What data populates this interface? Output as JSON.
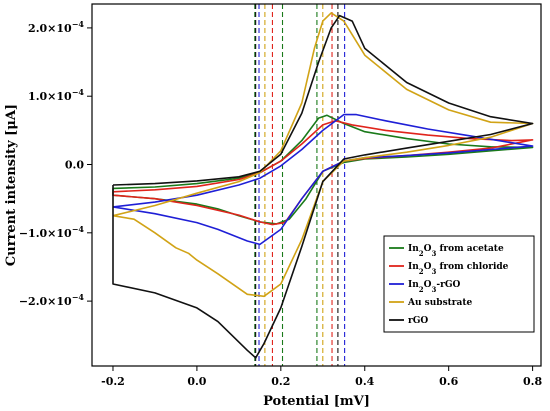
{
  "chart_data": {
    "type": "line",
    "xlabel": "Potential [mV]",
    "ylabel": "Current intensity [μA]",
    "xlim": [
      -0.25,
      0.82
    ],
    "ylim": [
      -2.95,
      2.35
    ],
    "x_ticks": [
      {
        "v": -0.2,
        "label": "-0.2"
      },
      {
        "v": 0.0,
        "label": "0.0"
      },
      {
        "v": 0.2,
        "label": "0.2"
      },
      {
        "v": 0.4,
        "label": "0.4"
      },
      {
        "v": 0.6,
        "label": "0.6"
      },
      {
        "v": 0.8,
        "label": "0.8"
      }
    ],
    "y_ticks": [
      {
        "v": 2.0,
        "main": "2.0×10",
        "exp": "−4"
      },
      {
        "v": 1.0,
        "main": "1.0×10",
        "exp": "−4"
      },
      {
        "v": 0.0,
        "main": "0.0",
        "exp": ""
      },
      {
        "v": -1.0,
        "main": "−1.0×10",
        "exp": "−4"
      },
      {
        "v": -2.0,
        "main": "−2.0×10",
        "exp": "−4"
      }
    ],
    "grid": false,
    "legend_position": "bottom-right",
    "series": [
      {
        "name": "In2O3 from acetate",
        "legend": {
          "pre": "In",
          "sub1": "2",
          "mid": "O",
          "sub2": "3",
          "post": " from acetate"
        },
        "color": "#1a7a1a",
        "points": [
          [
            -0.2,
            -0.35
          ],
          [
            -0.1,
            -0.33
          ],
          [
            0.0,
            -0.28
          ],
          [
            0.1,
            -0.2
          ],
          [
            0.15,
            -0.12
          ],
          [
            0.2,
            0.05
          ],
          [
            0.25,
            0.35
          ],
          [
            0.29,
            0.68
          ],
          [
            0.31,
            0.72
          ],
          [
            0.35,
            0.6
          ],
          [
            0.4,
            0.48
          ],
          [
            0.5,
            0.38
          ],
          [
            0.6,
            0.3
          ],
          [
            0.7,
            0.26
          ],
          [
            0.8,
            0.25
          ],
          [
            0.7,
            0.2
          ],
          [
            0.6,
            0.15
          ],
          [
            0.5,
            0.11
          ],
          [
            0.4,
            0.08
          ],
          [
            0.35,
            0.03
          ],
          [
            0.3,
            -0.1
          ],
          [
            0.26,
            -0.5
          ],
          [
            0.22,
            -0.8
          ],
          [
            0.19,
            -0.87
          ],
          [
            0.15,
            -0.84
          ],
          [
            0.1,
            -0.75
          ],
          [
            0.05,
            -0.65
          ],
          [
            0.0,
            -0.58
          ],
          [
            -0.1,
            -0.5
          ],
          [
            -0.2,
            -0.45
          ]
        ]
      },
      {
        "name": "In2O3 from chloride",
        "legend": {
          "pre": "In",
          "sub1": "2",
          "mid": "O",
          "sub2": "3",
          "post": " from chloride"
        },
        "color": "#e0241c",
        "points": [
          [
            -0.2,
            -0.4
          ],
          [
            -0.1,
            -0.37
          ],
          [
            0.0,
            -0.32
          ],
          [
            0.1,
            -0.22
          ],
          [
            0.15,
            -0.12
          ],
          [
            0.2,
            0.05
          ],
          [
            0.25,
            0.3
          ],
          [
            0.3,
            0.58
          ],
          [
            0.33,
            0.64
          ],
          [
            0.37,
            0.58
          ],
          [
            0.45,
            0.5
          ],
          [
            0.55,
            0.43
          ],
          [
            0.65,
            0.38
          ],
          [
            0.75,
            0.35
          ],
          [
            0.8,
            0.36
          ],
          [
            0.7,
            0.24
          ],
          [
            0.6,
            0.18
          ],
          [
            0.5,
            0.13
          ],
          [
            0.4,
            0.09
          ],
          [
            0.35,
            0.05
          ],
          [
            0.3,
            -0.1
          ],
          [
            0.25,
            -0.5
          ],
          [
            0.21,
            -0.85
          ],
          [
            0.18,
            -0.88
          ],
          [
            0.15,
            -0.84
          ],
          [
            0.1,
            -0.74
          ],
          [
            0.0,
            -0.6
          ],
          [
            -0.1,
            -0.5
          ],
          [
            -0.2,
            -0.45
          ]
        ]
      },
      {
        "name": "In2O3-rGO",
        "legend": {
          "pre": "In",
          "sub1": "2",
          "mid": "O",
          "sub2": "3",
          "post": "-rGO"
        },
        "color": "#1f1fd6",
        "points": [
          [
            -0.2,
            -0.62
          ],
          [
            -0.1,
            -0.55
          ],
          [
            0.0,
            -0.45
          ],
          [
            0.1,
            -0.3
          ],
          [
            0.15,
            -0.2
          ],
          [
            0.2,
            -0.02
          ],
          [
            0.25,
            0.22
          ],
          [
            0.3,
            0.5
          ],
          [
            0.35,
            0.73
          ],
          [
            0.38,
            0.73
          ],
          [
            0.45,
            0.64
          ],
          [
            0.55,
            0.52
          ],
          [
            0.65,
            0.42
          ],
          [
            0.75,
            0.32
          ],
          [
            0.8,
            0.27
          ],
          [
            0.7,
            0.22
          ],
          [
            0.6,
            0.17
          ],
          [
            0.5,
            0.13
          ],
          [
            0.4,
            0.1
          ],
          [
            0.35,
            0.05
          ],
          [
            0.3,
            -0.1
          ],
          [
            0.25,
            -0.5
          ],
          [
            0.2,
            -0.95
          ],
          [
            0.15,
            -1.17
          ],
          [
            0.12,
            -1.12
          ],
          [
            0.05,
            -0.95
          ],
          [
            0.0,
            -0.85
          ],
          [
            -0.1,
            -0.72
          ],
          [
            -0.2,
            -0.62
          ]
        ]
      },
      {
        "name": "Au substrate",
        "legend": {
          "pre": "Au substrate",
          "sub1": "",
          "mid": "",
          "sub2": "",
          "post": ""
        },
        "color": "#d1a316",
        "points": [
          [
            -0.2,
            -0.75
          ],
          [
            -0.1,
            -0.6
          ],
          [
            0.0,
            -0.42
          ],
          [
            0.1,
            -0.25
          ],
          [
            0.15,
            -0.12
          ],
          [
            0.2,
            0.2
          ],
          [
            0.25,
            0.9
          ],
          [
            0.28,
            1.7
          ],
          [
            0.3,
            2.1
          ],
          [
            0.32,
            2.22
          ],
          [
            0.35,
            2.1
          ],
          [
            0.4,
            1.6
          ],
          [
            0.5,
            1.1
          ],
          [
            0.6,
            0.8
          ],
          [
            0.7,
            0.62
          ],
          [
            0.8,
            0.6
          ],
          [
            0.7,
            0.4
          ],
          [
            0.6,
            0.28
          ],
          [
            0.5,
            0.18
          ],
          [
            0.4,
            0.1
          ],
          [
            0.35,
            0.05
          ],
          [
            0.3,
            -0.25
          ],
          [
            0.25,
            -1.1
          ],
          [
            0.2,
            -1.75
          ],
          [
            0.16,
            -1.93
          ],
          [
            0.12,
            -1.9
          ],
          [
            0.05,
            -1.6
          ],
          [
            0.0,
            -1.4
          ],
          [
            -0.02,
            -1.3
          ],
          [
            -0.05,
            -1.22
          ],
          [
            -0.1,
            -1.0
          ],
          [
            -0.15,
            -0.8
          ],
          [
            -0.2,
            -0.75
          ]
        ]
      },
      {
        "name": "rGO",
        "legend": {
          "pre": "rGO",
          "sub1": "",
          "mid": "",
          "sub2": "",
          "post": ""
        },
        "color": "#111111",
        "points": [
          [
            -0.2,
            -0.3
          ],
          [
            -0.1,
            -0.28
          ],
          [
            0.0,
            -0.24
          ],
          [
            0.1,
            -0.18
          ],
          [
            0.15,
            -0.1
          ],
          [
            0.2,
            0.15
          ],
          [
            0.25,
            0.75
          ],
          [
            0.29,
            1.5
          ],
          [
            0.32,
            2.0
          ],
          [
            0.34,
            2.18
          ],
          [
            0.37,
            2.1
          ],
          [
            0.4,
            1.7
          ],
          [
            0.5,
            1.2
          ],
          [
            0.6,
            0.9
          ],
          [
            0.7,
            0.7
          ],
          [
            0.8,
            0.6
          ],
          [
            0.7,
            0.44
          ],
          [
            0.6,
            0.34
          ],
          [
            0.5,
            0.24
          ],
          [
            0.4,
            0.14
          ],
          [
            0.35,
            0.08
          ],
          [
            0.3,
            -0.25
          ],
          [
            0.25,
            -1.2
          ],
          [
            0.2,
            -2.1
          ],
          [
            0.16,
            -2.62
          ],
          [
            0.14,
            -2.83
          ],
          [
            0.12,
            -2.72
          ],
          [
            0.05,
            -2.3
          ],
          [
            0.0,
            -2.1
          ],
          [
            -0.1,
            -1.88
          ],
          [
            -0.2,
            -1.75
          ]
        ]
      }
    ],
    "reference_lines": [
      {
        "x": 0.138,
        "color": "#1a7a1a"
      },
      {
        "x": 0.14,
        "color": "#111111"
      },
      {
        "x": 0.148,
        "color": "#1f1fd6"
      },
      {
        "x": 0.162,
        "color": "#d1a316"
      },
      {
        "x": 0.18,
        "color": "#e0241c"
      },
      {
        "x": 0.204,
        "color": "#1a7a1a"
      },
      {
        "x": 0.286,
        "color": "#1a7a1a"
      },
      {
        "x": 0.3,
        "color": "#d1a316"
      },
      {
        "x": 0.322,
        "color": "#e0241c"
      },
      {
        "x": 0.336,
        "color": "#111111"
      },
      {
        "x": 0.352,
        "color": "#1f1fd6"
      }
    ]
  }
}
